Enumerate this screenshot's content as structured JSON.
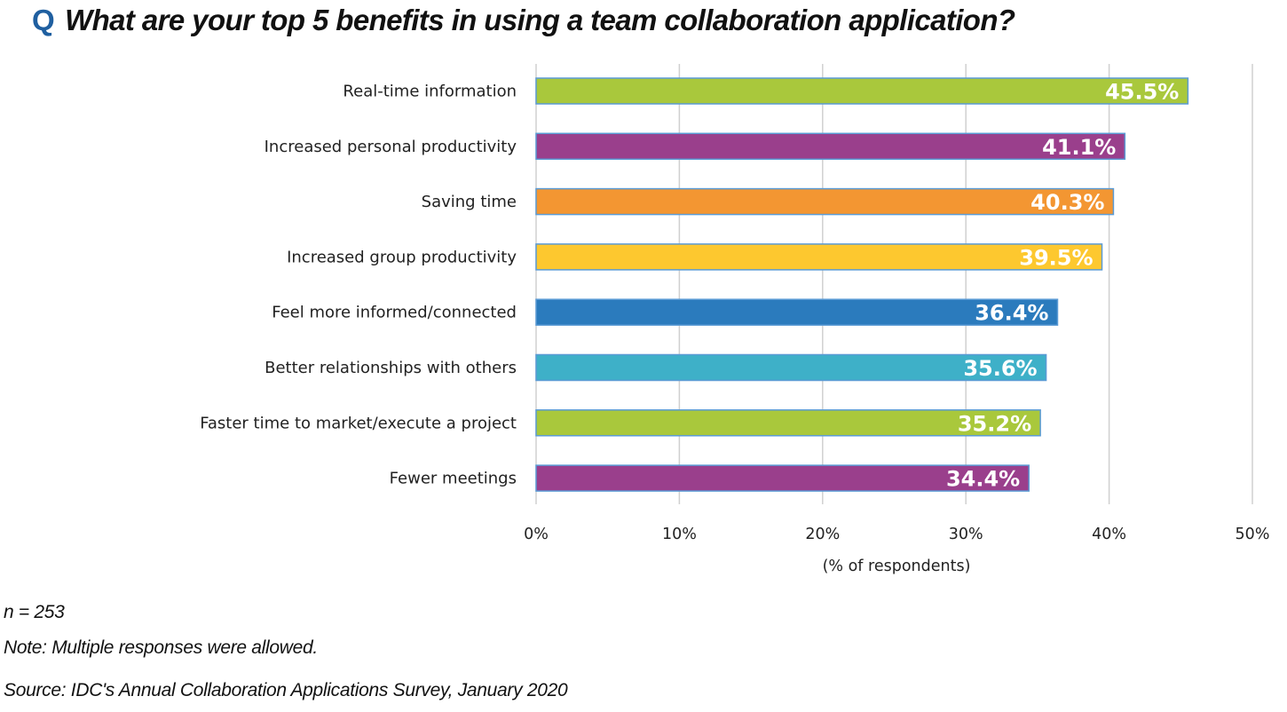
{
  "title": {
    "marker": "Q",
    "text": "What are your top 5 benefits in using a team collaboration application?"
  },
  "chart_data": {
    "type": "bar",
    "orientation": "horizontal",
    "title": "What are your top 5 benefits in using a team collaboration application?",
    "categories": [
      "Real-time information",
      "Increased personal productivity",
      "Saving time",
      "Increased group productivity",
      "Feel more informed/connected",
      "Better relationships with others",
      "Faster time to market/execute a project",
      "Fewer meetings"
    ],
    "values": [
      45.5,
      41.1,
      40.3,
      39.5,
      36.4,
      35.6,
      35.2,
      34.4
    ],
    "value_labels": [
      "45.5%",
      "41.1%",
      "40.3%",
      "39.5%",
      "36.4%",
      "35.6%",
      "35.2%",
      "34.4%"
    ],
    "bar_colors": [
      "#a9c83c",
      "#9a3f8c",
      "#f39632",
      "#fdc82f",
      "#2b7bbd",
      "#3eb0c8",
      "#a9c83c",
      "#9a3f8c"
    ],
    "bar_outline_color": "#5b9bd5",
    "xlim": [
      0,
      50
    ],
    "xticks": [
      0,
      10,
      20,
      30,
      40,
      50
    ],
    "xtick_labels": [
      "0%",
      "10%",
      "20%",
      "30%",
      "40%",
      "50%"
    ],
    "xlabel": "(% of respondents)",
    "ylabel": "",
    "grid": true,
    "legend": "none"
  },
  "footnotes": {
    "n": "n = 253",
    "note": "Note: Multiple responses were allowed.",
    "source": "Source: IDC's Annual Collaboration Applications Survey, January 2020"
  }
}
